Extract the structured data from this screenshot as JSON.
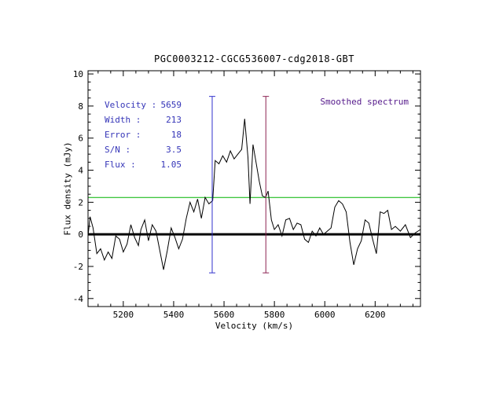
{
  "title": "PGC0003212-CGCG536007-cdg2018-GBT",
  "annotations": {
    "smoothed_label": "Smoothed spectrum",
    "stats": [
      {
        "label": "Velocity :",
        "value": "5659"
      },
      {
        "label": "Width :",
        "value": "213"
      },
      {
        "label": "Error :",
        "value": "18"
      },
      {
        "label": "S/N :",
        "value": "3.5"
      },
      {
        "label": "Flux :",
        "value": "1.05"
      }
    ]
  },
  "colors": {
    "stats_text": "#3535b8",
    "smoothed_text": "#551a8b",
    "spectrum": "#000000",
    "threshold_green": "#00b400",
    "marker_left": "#3232cd",
    "marker_right": "#8b2252"
  },
  "chart_data": {
    "type": "line",
    "title": "PGC0003212-CGCG536007-cdg2018-GBT",
    "xlabel": "Velocity (km/s)",
    "ylabel": "Flux density (mJy)",
    "xlim": [
      5060,
      6380
    ],
    "ylim": [
      -4.5,
      10.2
    ],
    "xticks": [
      5200,
      5400,
      5600,
      5800,
      6000,
      6200
    ],
    "yticks": [
      -4,
      -2,
      0,
      2,
      4,
      6,
      8,
      10
    ],
    "x_minor_step": 50,
    "y_minor_step": 0.5,
    "grid": false,
    "legend": false,
    "series": [
      {
        "name": "smoothed-spectrum",
        "color": "#000000",
        "x": [
          5060,
          5068,
          5080,
          5095,
          5110,
          5125,
          5140,
          5155,
          5170,
          5185,
          5200,
          5215,
          5230,
          5245,
          5260,
          5270,
          5285,
          5300,
          5315,
          5330,
          5345,
          5360,
          5375,
          5390,
          5405,
          5420,
          5435,
          5450,
          5465,
          5480,
          5495,
          5510,
          5525,
          5540,
          5555,
          5565,
          5580,
          5595,
          5610,
          5625,
          5640,
          5655,
          5670,
          5682,
          5695,
          5703,
          5715,
          5728,
          5740,
          5752,
          5765,
          5775,
          5788,
          5800,
          5815,
          5830,
          5845,
          5860,
          5875,
          5890,
          5905,
          5920,
          5935,
          5950,
          5965,
          5980,
          5995,
          6010,
          6025,
          6040,
          6055,
          6070,
          6085,
          6100,
          6115,
          6130,
          6145,
          6160,
          6175,
          6190,
          6205,
          6220,
          6235,
          6250,
          6265,
          6280,
          6300,
          6320,
          6340,
          6360,
          6380
        ],
        "y": [
          -0.1,
          1.1,
          0.4,
          -1.2,
          -0.9,
          -1.6,
          -1.1,
          -1.5,
          -0.1,
          -0.3,
          -1.1,
          -0.6,
          0.6,
          -0.2,
          -0.7,
          0.3,
          0.9,
          -0.4,
          0.6,
          0.2,
          -1.0,
          -2.2,
          -1.0,
          0.4,
          -0.2,
          -0.9,
          -0.3,
          1.0,
          2.0,
          1.4,
          2.2,
          1.0,
          2.3,
          1.9,
          2.1,
          4.6,
          4.4,
          4.9,
          4.5,
          5.2,
          4.7,
          5.0,
          5.3,
          7.2,
          4.8,
          1.9,
          5.6,
          4.4,
          3.3,
          2.4,
          2.3,
          2.7,
          0.9,
          0.3,
          0.6,
          -0.1,
          0.9,
          1.0,
          0.3,
          0.7,
          0.6,
          -0.3,
          -0.5,
          0.2,
          -0.1,
          0.4,
          0.0,
          0.2,
          0.4,
          1.7,
          2.1,
          1.9,
          1.4,
          -0.5,
          -1.9,
          -0.9,
          -0.4,
          0.9,
          0.7,
          -0.3,
          -1.2,
          1.4,
          1.3,
          1.5,
          0.3,
          0.5,
          0.2,
          0.6,
          -0.2,
          0.1,
          0.3
        ]
      }
    ],
    "reference_lines": {
      "zero_line": {
        "y": 0,
        "color": "#000000",
        "width": 3
      },
      "flux_threshold": {
        "y": 2.3,
        "color": "#00b400",
        "width": 1
      }
    },
    "velocity_markers": [
      {
        "x": 5553,
        "y_top": 8.6,
        "y_bottom": -2.4,
        "color": "#3232cd"
      },
      {
        "x": 5766,
        "y_top": 8.6,
        "y_bottom": -2.4,
        "color": "#8b2252"
      }
    ]
  }
}
